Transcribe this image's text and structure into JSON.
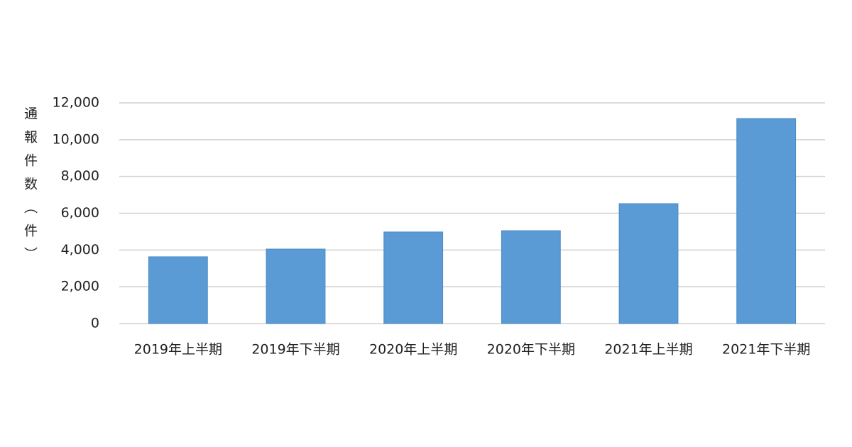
{
  "chart_data": {
    "type": "bar",
    "y_label": "通報件数（件）",
    "categories": [
      "2019年上半期",
      "2019年下半期",
      "2020年上半期",
      "2020年下半期",
      "2021年上半期",
      "2021年下半期"
    ],
    "values": [
      3630,
      4050,
      4980,
      5050,
      6520,
      11150
    ],
    "color": "#5b9bd5",
    "ylim": [
      0,
      12000
    ],
    "yticks": [
      0,
      {
        "value": 2000,
        "label": "2,000"
      },
      {
        "value": 4000,
        "label": "4,000"
      },
      {
        "value": 6000,
        "label": "6,000"
      },
      {
        "value": 8000,
        "label": "8,000"
      },
      {
        "value": 10000,
        "label": "10,000"
      },
      {
        "value": 12000,
        "label": "12,000"
      }
    ],
    "grid": true
  }
}
